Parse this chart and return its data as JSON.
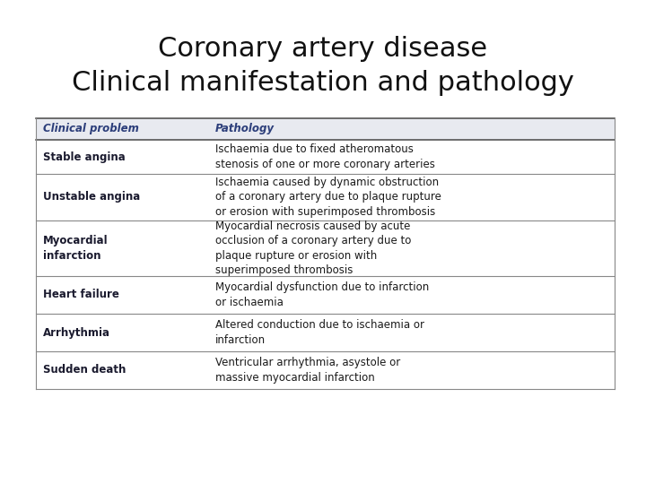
{
  "title_line1": "Coronary artery disease",
  "title_line2": "Clinical manifestation and pathology",
  "title_fontsize": 22,
  "background_color": "#ffffff",
  "header": [
    "Clinical problem",
    "Pathology"
  ],
  "header_bg": "#e8eaf0",
  "rows": [
    {
      "problem": "Stable angina",
      "pathology": "Ischaemia due to fixed atheromatous\nstenosis of one or more coronary arteries"
    },
    {
      "problem": "Unstable angina",
      "pathology": "Ischaemia caused by dynamic obstruction\nof a coronary artery due to plaque rupture\nor erosion with superimposed thrombosis"
    },
    {
      "problem": "Myocardial\ninfarction",
      "pathology": "Myocardial necrosis caused by acute\nocclusion of a coronary artery due to\nplaque rupture or erosion with\nsuperimposed thrombosis"
    },
    {
      "problem": "Heart failure",
      "pathology": "Myocardial dysfunction due to infarction\nor ischaemia"
    },
    {
      "problem": "Arrhythmia",
      "pathology": "Altered conduction due to ischaemia or\ninfarction"
    },
    {
      "problem": "Sudden death",
      "pathology": "Ventricular arrhythmia, asystole or\nmassive myocardial infarction"
    }
  ],
  "header_text_color": "#2c3e7a",
  "row_text_color": "#1a1a1a",
  "problem_text_color": "#1a1a2e",
  "line_color": "#888888",
  "header_line_color": "#555555"
}
